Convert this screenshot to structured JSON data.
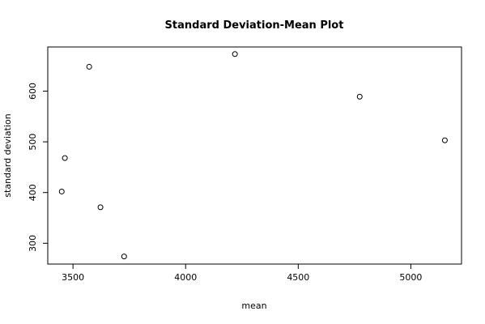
{
  "chart_data": {
    "type": "scatter",
    "title": "Standard Deviation-Mean Plot",
    "x_label": "mean",
    "y_label": "standard deviation",
    "x": [
      3450,
      3464,
      3572,
      3622,
      3727,
      4219,
      4773,
      5151
    ],
    "values": [
      402,
      468,
      648,
      371,
      274,
      673,
      589,
      503
    ],
    "color": "#000000",
    "xlim": [
      3388,
      5225
    ],
    "xticks": [
      3500,
      4000,
      4500,
      5000
    ],
    "ylim": [
      259,
      687
    ],
    "yticks": [
      300,
      400,
      500,
      600
    ]
  }
}
